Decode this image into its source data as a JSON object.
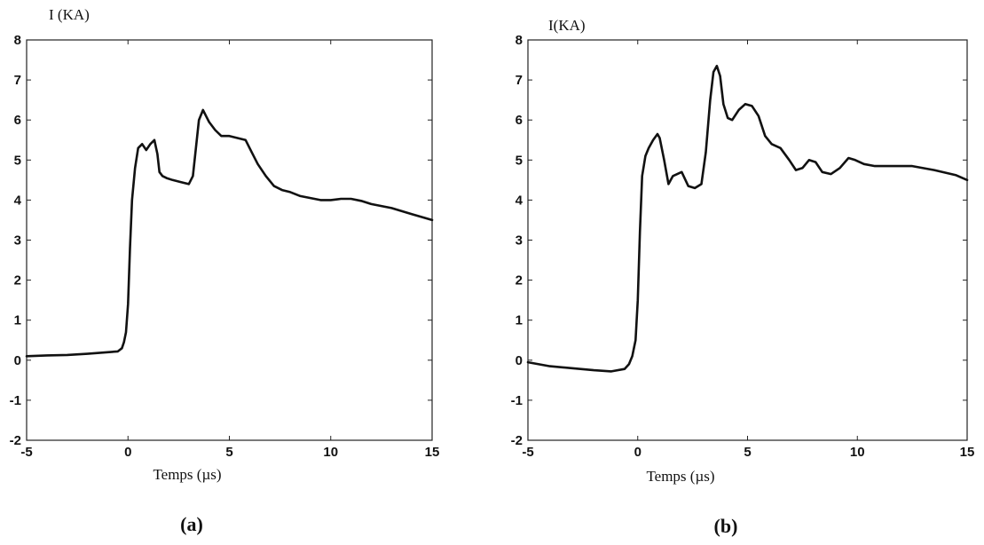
{
  "chart_data": [
    {
      "type": "line",
      "panel_label": "(a)",
      "xlabel": "Temps (µs)",
      "ylabel": "I (KA)",
      "xlim": [
        -5,
        15
      ],
      "ylim": [
        -2,
        8
      ],
      "xticks": [
        "-5",
        "0",
        "5",
        "10",
        "15"
      ],
      "yticks": [
        "-2",
        "-1",
        "0",
        "1",
        "2",
        "3",
        "4",
        "5",
        "6",
        "7",
        "8"
      ],
      "grid": false,
      "series": [
        {
          "x": [
            -5,
            -4,
            -3,
            -2,
            -1,
            -0.5,
            -0.3,
            -0.2,
            -0.1,
            0,
            0.1,
            0.2,
            0.35,
            0.5,
            0.7,
            0.9,
            1.1,
            1.3,
            1.45,
            1.55,
            1.7,
            1.9,
            2.2,
            2.6,
            3.0,
            3.2,
            3.35,
            3.5,
            3.7,
            3.85,
            4.0,
            4.3,
            4.6,
            5.0,
            5.4,
            5.8,
            6.1,
            6.4,
            6.8,
            7.2,
            7.6,
            8.0,
            8.5,
            9.0,
            9.5,
            10.0,
            10.5,
            11.0,
            11.5,
            12.0,
            13.0,
            14.0,
            15.0
          ],
          "y": [
            0.1,
            0.12,
            0.13,
            0.16,
            0.2,
            0.22,
            0.3,
            0.45,
            0.7,
            1.4,
            2.8,
            4.0,
            4.8,
            5.3,
            5.4,
            5.25,
            5.4,
            5.5,
            5.15,
            4.7,
            4.6,
            4.55,
            4.5,
            4.45,
            4.4,
            4.6,
            5.3,
            6.0,
            6.25,
            6.1,
            5.95,
            5.75,
            5.6,
            5.6,
            5.55,
            5.5,
            5.2,
            4.9,
            4.6,
            4.35,
            4.25,
            4.2,
            4.1,
            4.05,
            4.0,
            4.0,
            4.03,
            4.03,
            3.98,
            3.9,
            3.8,
            3.65,
            3.5
          ]
        }
      ]
    },
    {
      "type": "line",
      "panel_label": "(b)",
      "xlabel": "Temps (µs)",
      "ylabel": "I(KA)",
      "xlim": [
        -5,
        15
      ],
      "ylim": [
        -2,
        8
      ],
      "xticks": [
        "-5",
        "0",
        "5",
        "10",
        "15"
      ],
      "yticks": [
        "-2",
        "-1",
        "0",
        "1",
        "2",
        "3",
        "4",
        "5",
        "6",
        "7",
        "8"
      ],
      "grid": false,
      "series": [
        {
          "x": [
            -5,
            -4,
            -3,
            -2,
            -1.2,
            -0.6,
            -0.4,
            -0.25,
            -0.1,
            0,
            0.1,
            0.2,
            0.35,
            0.5,
            0.7,
            0.9,
            1.0,
            1.2,
            1.4,
            1.6,
            1.8,
            2.0,
            2.3,
            2.6,
            2.9,
            3.1,
            3.3,
            3.45,
            3.6,
            3.75,
            3.9,
            4.1,
            4.3,
            4.6,
            4.9,
            5.2,
            5.5,
            5.8,
            6.1,
            6.5,
            6.9,
            7.2,
            7.5,
            7.8,
            8.1,
            8.4,
            8.8,
            9.2,
            9.6,
            9.9,
            10.3,
            10.8,
            11.5,
            12.5,
            13.5,
            14.5,
            15.0
          ],
          "y": [
            -0.05,
            -0.15,
            -0.2,
            -0.25,
            -0.28,
            -0.22,
            -0.1,
            0.1,
            0.5,
            1.5,
            3.2,
            4.6,
            5.1,
            5.3,
            5.5,
            5.65,
            5.55,
            5.0,
            4.4,
            4.6,
            4.65,
            4.7,
            4.35,
            4.3,
            4.4,
            5.2,
            6.5,
            7.2,
            7.35,
            7.1,
            6.4,
            6.05,
            6.0,
            6.25,
            6.4,
            6.35,
            6.1,
            5.6,
            5.4,
            5.3,
            5.0,
            4.75,
            4.8,
            5.0,
            4.95,
            4.7,
            4.65,
            4.8,
            5.05,
            5.0,
            4.9,
            4.85,
            4.85,
            4.85,
            4.75,
            4.62,
            4.5
          ]
        }
      ]
    }
  ]
}
